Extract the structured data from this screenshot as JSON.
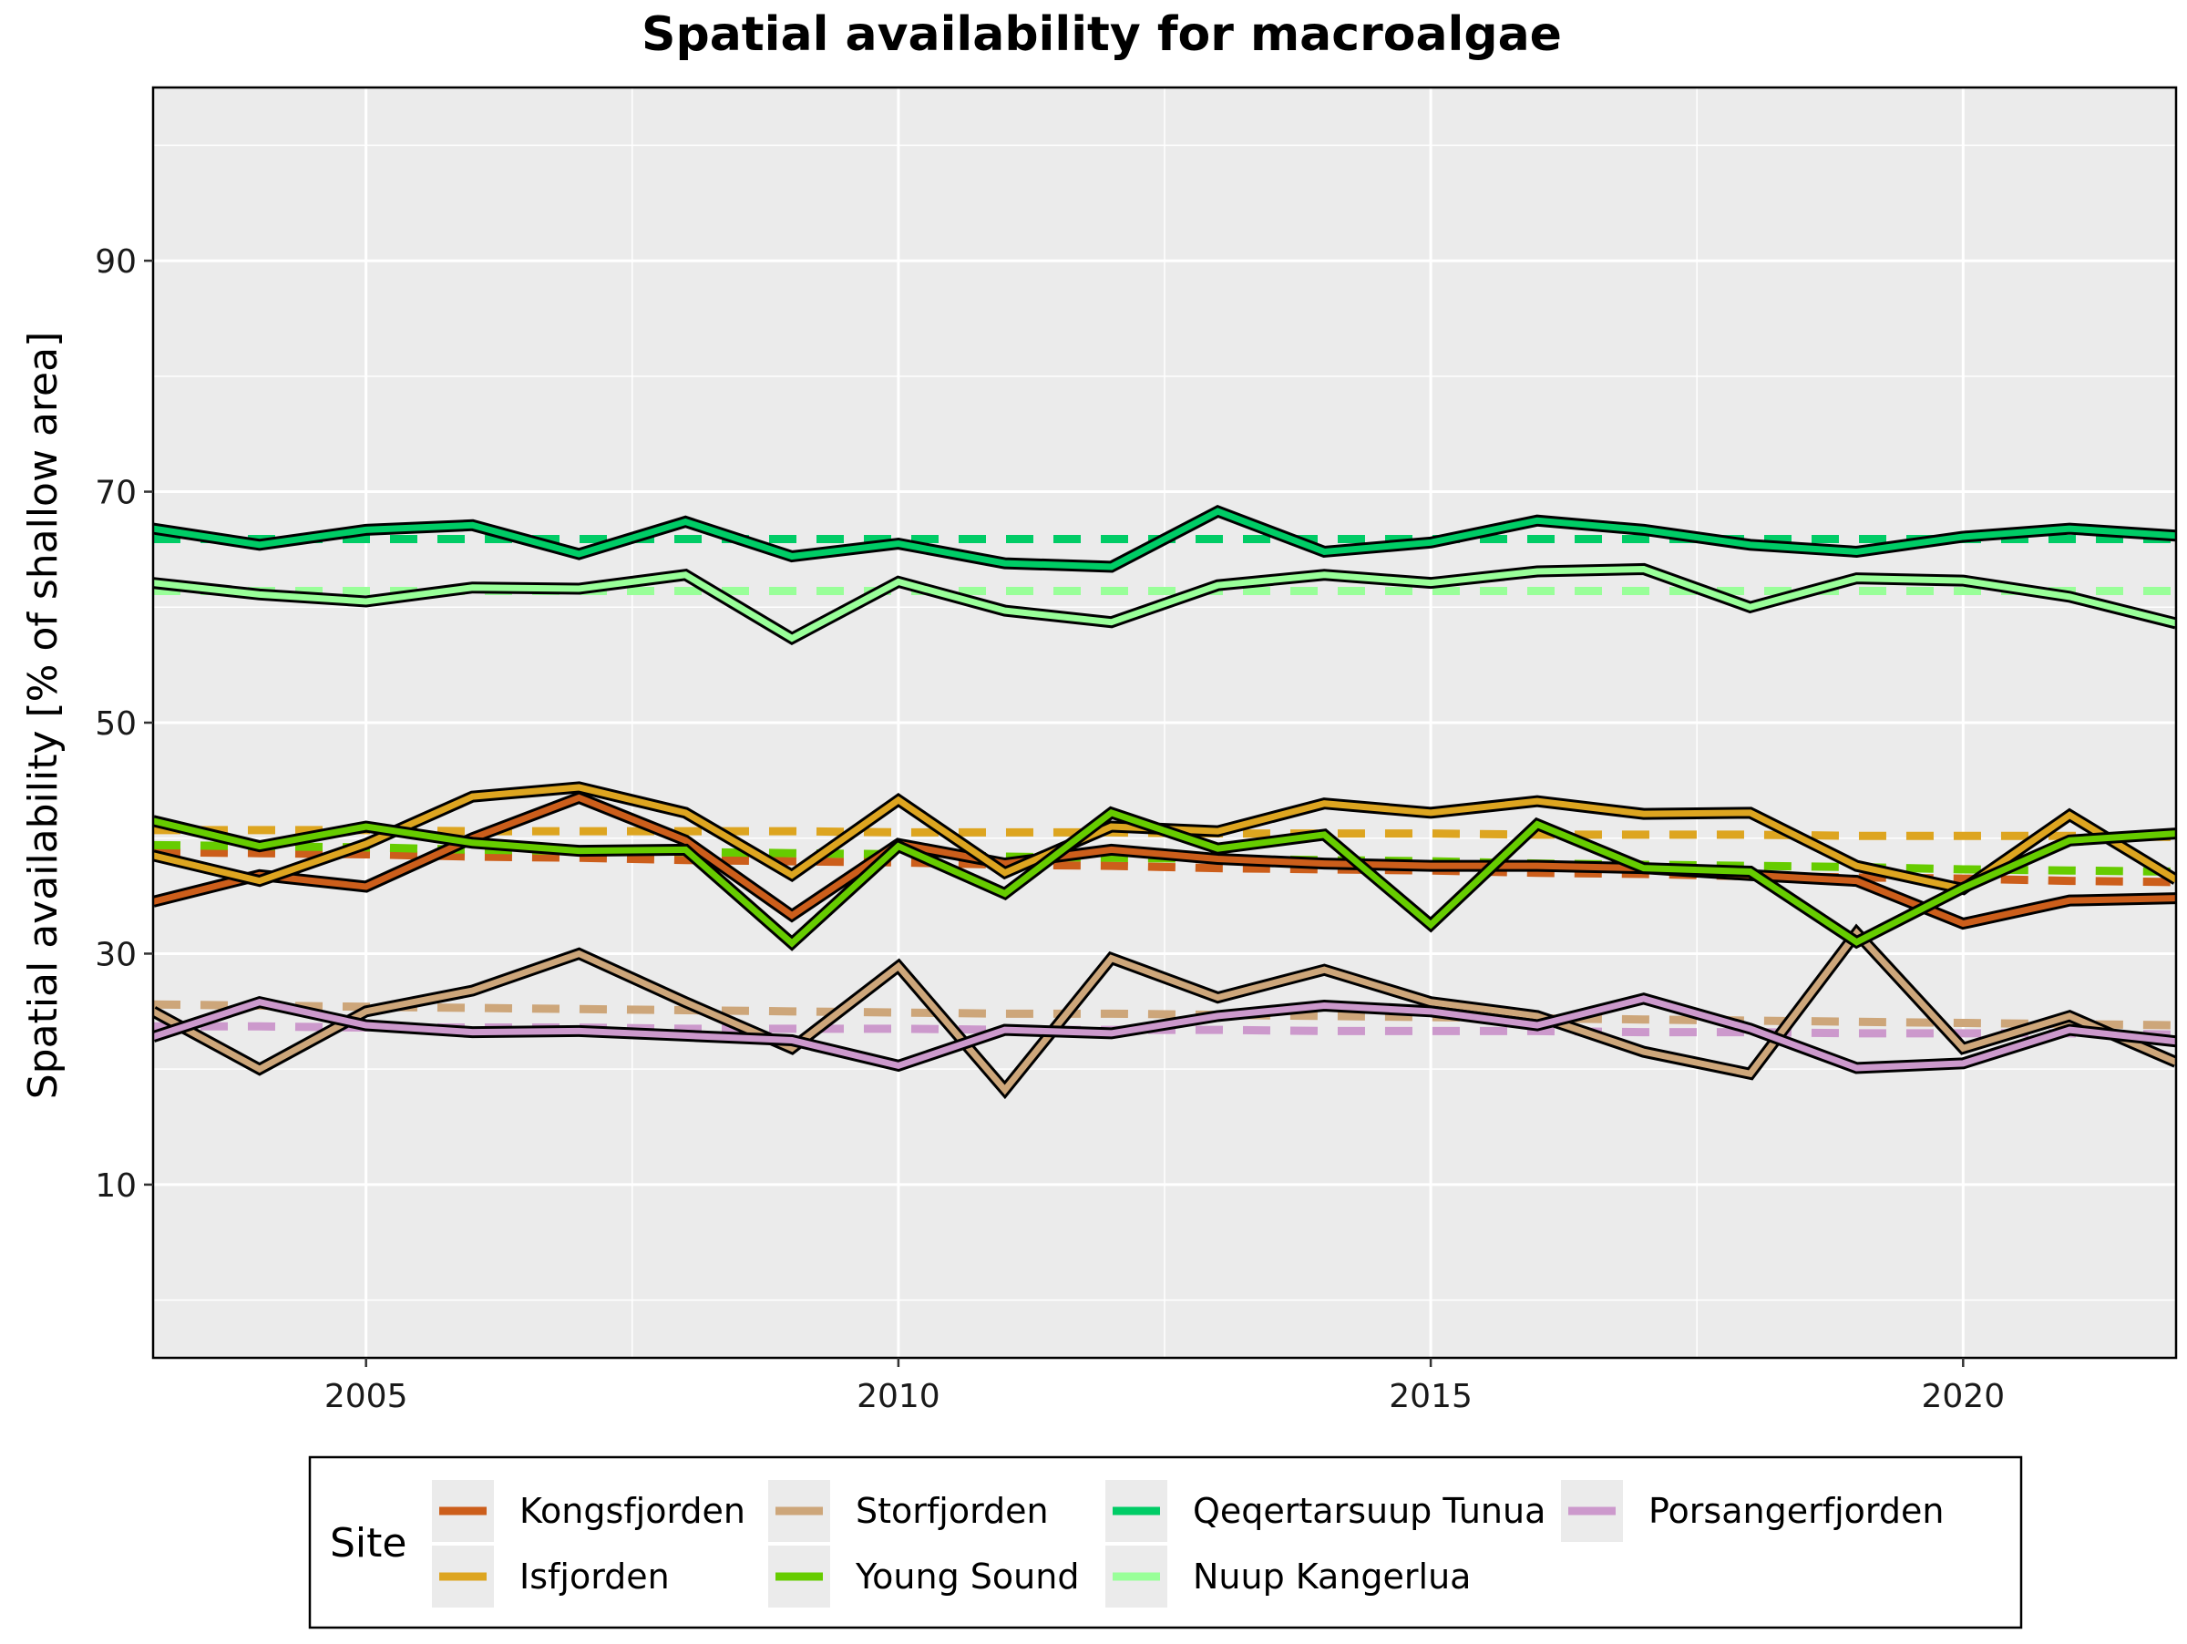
{
  "chart_data": {
    "type": "line",
    "title": "Spatial availability for macroalgae",
    "xlabel": "",
    "ylabel": "Spatial availability [% of shallow area]",
    "xlim": [
      2003,
      2022
    ],
    "ylim": [
      -5,
      105
    ],
    "x_ticks": [
      2005,
      2010,
      2015,
      2020
    ],
    "y_ticks": [
      10,
      30,
      50,
      70,
      90
    ],
    "grid": true,
    "legend_position": "bottom",
    "legend_title": "Site",
    "x": [
      2003,
      2004,
      2005,
      2006,
      2007,
      2008,
      2009,
      2010,
      2011,
      2012,
      2013,
      2014,
      2015,
      2016,
      2017,
      2018,
      2019,
      2020,
      2021,
      2022
    ],
    "series": [
      {
        "name": "Kongsfjorden",
        "color": "#CC5E1B",
        "values": [
          34.5,
          36.8,
          35.8,
          40.0,
          43.5,
          39.8,
          33.3,
          39.5,
          37.8,
          39.0,
          38.2,
          37.8,
          37.6,
          37.6,
          37.4,
          36.8,
          36.3,
          32.6,
          34.6,
          34.8
        ],
        "trend": [
          38.8,
          38.7,
          38.6,
          38.4,
          38.3,
          38.1,
          38.0,
          37.9,
          37.7,
          37.6,
          37.4,
          37.3,
          37.2,
          37.0,
          36.9,
          36.7,
          36.6,
          36.5,
          36.3,
          36.2
        ]
      },
      {
        "name": "Isfjorden",
        "color": "#DDA520",
        "values": [
          38.5,
          36.3,
          39.5,
          43.6,
          44.4,
          42.2,
          36.8,
          43.3,
          37.0,
          41.0,
          40.6,
          43.0,
          42.2,
          43.2,
          42.1,
          42.2,
          37.6,
          35.6,
          42.0,
          36.4
        ],
        "trend": [
          40.7,
          40.7,
          40.7,
          40.6,
          40.6,
          40.6,
          40.6,
          40.5,
          40.5,
          40.5,
          40.4,
          40.4,
          40.4,
          40.3,
          40.3,
          40.3,
          40.2,
          40.2,
          40.2,
          40.1
        ]
      },
      {
        "name": "Storfjorden",
        "color": "#CDA67A",
        "values": [
          25.0,
          20.0,
          25.0,
          26.8,
          30.0,
          25.8,
          21.8,
          28.9,
          18.2,
          29.6,
          26.2,
          28.6,
          25.8,
          24.6,
          21.5,
          19.6,
          31.8,
          21.8,
          24.6,
          20.6
        ],
        "trend": [
          25.6,
          25.5,
          25.4,
          25.3,
          25.2,
          25.1,
          25.0,
          24.9,
          24.8,
          24.8,
          24.7,
          24.6,
          24.5,
          24.4,
          24.3,
          24.2,
          24.1,
          24.0,
          23.9,
          23.8
        ]
      },
      {
        "name": "Young Sound",
        "color": "#66CC00",
        "values": [
          41.5,
          39.3,
          41.0,
          39.6,
          38.9,
          39.0,
          30.9,
          39.3,
          35.2,
          42.2,
          39.1,
          40.3,
          32.5,
          41.2,
          37.4,
          37.1,
          31.0,
          35.7,
          39.8,
          40.4
        ],
        "trend": [
          39.4,
          39.3,
          39.2,
          39.0,
          38.9,
          38.8,
          38.7,
          38.6,
          38.4,
          38.3,
          38.2,
          38.1,
          38.0,
          37.8,
          37.7,
          37.6,
          37.5,
          37.3,
          37.2,
          37.1
        ]
      },
      {
        "name": "Qeqertarsuup Tunua",
        "color": "#00CC66",
        "values": [
          66.8,
          65.4,
          66.7,
          67.1,
          64.6,
          67.4,
          64.4,
          65.5,
          63.8,
          63.5,
          68.3,
          64.8,
          65.6,
          67.5,
          66.7,
          65.4,
          64.8,
          66.1,
          66.8,
          66.2
        ],
        "trend": [
          65.9,
          65.9,
          65.9,
          65.9,
          65.9,
          65.9,
          65.9,
          65.9,
          65.9,
          65.9,
          65.9,
          65.9,
          65.9,
          65.9,
          65.9,
          65.9,
          65.9,
          65.9,
          65.9,
          65.9
        ]
      },
      {
        "name": "Nuup Kangerlua",
        "color": "#99FF99",
        "values": [
          62.1,
          61.1,
          60.5,
          61.7,
          61.6,
          62.8,
          57.3,
          62.2,
          59.7,
          58.7,
          61.9,
          62.8,
          62.1,
          63.1,
          63.3,
          60.0,
          62.5,
          62.3,
          60.9,
          58.6
        ],
        "trend": [
          61.4,
          61.4,
          61.4,
          61.4,
          61.4,
          61.4,
          61.4,
          61.4,
          61.4,
          61.4,
          61.4,
          61.4,
          61.4,
          61.4,
          61.4,
          61.4,
          61.4,
          61.4,
          61.4,
          61.4
        ]
      },
      {
        "name": "Porsangerfjorden",
        "color": "#CC99CC",
        "values": [
          22.8,
          25.8,
          23.8,
          23.2,
          23.3,
          22.9,
          22.5,
          20.3,
          23.4,
          23.1,
          24.6,
          25.5,
          25.0,
          23.8,
          26.1,
          23.5,
          20.1,
          20.5,
          23.4,
          22.4
        ],
        "trend": [
          23.7,
          23.7,
          23.6,
          23.6,
          23.6,
          23.5,
          23.5,
          23.5,
          23.4,
          23.4,
          23.4,
          23.3,
          23.3,
          23.3,
          23.2,
          23.2,
          23.1,
          23.1,
          23.1,
          23.0
        ]
      }
    ]
  }
}
